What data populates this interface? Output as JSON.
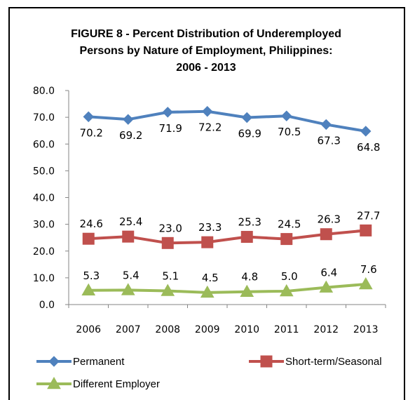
{
  "chart_data": {
    "type": "line",
    "title_lines": [
      "FIGURE 8 - Percent Distribution of Underemployed",
      "Persons by Nature of Employment, Philippines:",
      "2006 - 2013"
    ],
    "categories": [
      "2006",
      "2007",
      "2008",
      "2009",
      "2010",
      "2011",
      "2012",
      "2013"
    ],
    "y_ticks": [
      "0.0",
      "10.0",
      "20.0",
      "30.0",
      "40.0",
      "50.0",
      "60.0",
      "70.0",
      "80.0"
    ],
    "ylim": [
      0,
      80
    ],
    "grid": false,
    "legend_position": "bottom",
    "series": [
      {
        "name": "Permanent",
        "marker": "diamond",
        "color": "#4f81bd",
        "values": [
          70.2,
          69.2,
          71.9,
          72.2,
          69.9,
          70.5,
          67.3,
          64.8
        ],
        "labels": [
          "70.2",
          "69.2",
          "71.9",
          "72.2",
          "69.9",
          "70.5",
          "67.3",
          "64.8"
        ],
        "label_position": "below"
      },
      {
        "name": "Short-term/Seasonal",
        "marker": "square",
        "color": "#c0504d",
        "values": [
          24.6,
          25.4,
          23.0,
          23.3,
          25.3,
          24.5,
          26.3,
          27.7
        ],
        "labels": [
          "24.6",
          "25.4",
          "23.0",
          "23.3",
          "25.3",
          "24.5",
          "26.3",
          "27.7"
        ],
        "label_position": "above"
      },
      {
        "name": "Different Employer",
        "marker": "triangle",
        "color": "#9bbb59",
        "values": [
          5.3,
          5.4,
          5.1,
          4.5,
          4.8,
          5.0,
          6.4,
          7.6
        ],
        "labels": [
          "5.3",
          "5.4",
          "5.1",
          "4.5",
          "4.8",
          "5.0",
          "6.4",
          "7.6"
        ],
        "label_position": "above"
      }
    ]
  }
}
